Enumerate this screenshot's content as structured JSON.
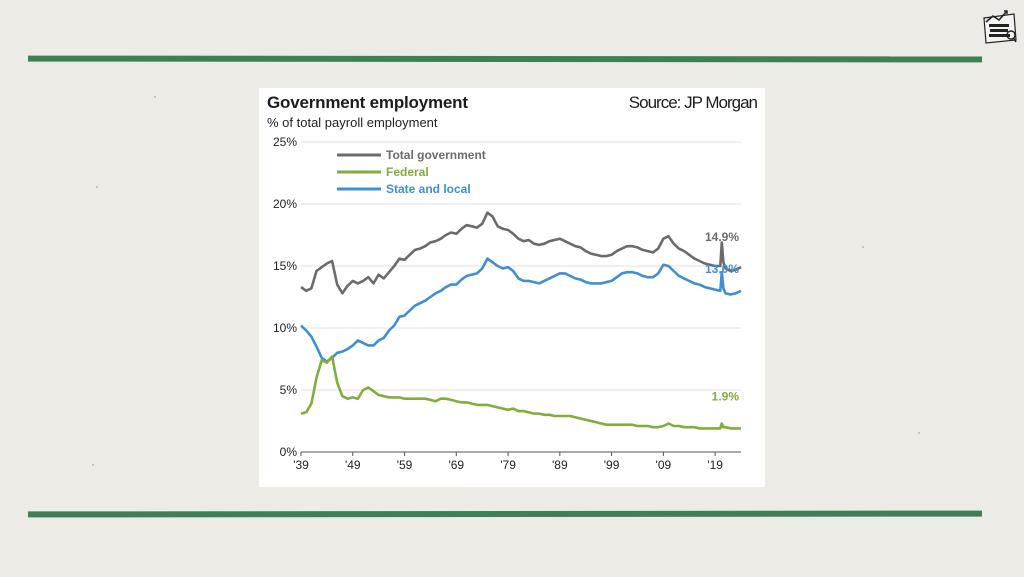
{
  "source": "Source: JP Morgan",
  "colors": {
    "rule": "#3f7f56",
    "background": "#ecebe6",
    "total": "#6b6b6b",
    "federal": "#82ad3c",
    "state": "#3f8fd2"
  },
  "chart_data": {
    "type": "line",
    "title": "Government employment",
    "subtitle": "% of total payroll employment",
    "xlabel": "",
    "ylabel": "",
    "xlim": [
      1939,
      2024
    ],
    "ylim": [
      0,
      25
    ],
    "x_ticks": [
      1939,
      1949,
      1959,
      1969,
      1979,
      1989,
      1999,
      2009,
      2019
    ],
    "x_tick_labels": [
      "'39",
      "'49",
      "'59",
      "'69",
      "'79",
      "'89",
      "'99",
      "'09",
      "'19"
    ],
    "y_ticks": [
      0,
      5,
      10,
      15,
      20,
      25
    ],
    "y_tick_labels": [
      "0%",
      "5%",
      "10%",
      "15%",
      "20%",
      "25%"
    ],
    "grid": "horizontal",
    "legend_position": "top-left",
    "series": [
      {
        "name": "Total government",
        "color": "#6b6b6b",
        "end_label": "14.9%",
        "x": [
          1939,
          1940,
          1941,
          1942,
          1943,
          1944,
          1945,
          1946,
          1947,
          1948,
          1949,
          1950,
          1951,
          1952,
          1953,
          1954,
          1955,
          1956,
          1957,
          1958,
          1959,
          1960,
          1961,
          1962,
          1963,
          1964,
          1965,
          1966,
          1967,
          1968,
          1969,
          1970,
          1971,
          1972,
          1973,
          1974,
          1975,
          1976,
          1977,
          1978,
          1979,
          1980,
          1981,
          1982,
          1983,
          1984,
          1985,
          1986,
          1987,
          1988,
          1989,
          1990,
          1991,
          1992,
          1993,
          1994,
          1995,
          1996,
          1997,
          1998,
          1999,
          2000,
          2001,
          2002,
          2003,
          2004,
          2005,
          2006,
          2007,
          2008,
          2009,
          2010,
          2011,
          2012,
          2013,
          2014,
          2015,
          2016,
          2017,
          2018,
          2019,
          2020,
          2020.3,
          2020.6,
          2021,
          2022,
          2023,
          2024
        ],
        "values": [
          13.3,
          13.0,
          13.2,
          14.6,
          14.9,
          15.2,
          15.4,
          13.5,
          12.8,
          13.4,
          13.8,
          13.6,
          13.8,
          14.1,
          13.6,
          14.3,
          14.0,
          14.5,
          15.0,
          15.6,
          15.5,
          15.9,
          16.3,
          16.4,
          16.6,
          16.9,
          17.0,
          17.2,
          17.5,
          17.7,
          17.6,
          18.0,
          18.3,
          18.2,
          18.1,
          18.4,
          19.3,
          19.0,
          18.2,
          18.0,
          17.9,
          17.6,
          17.2,
          17.0,
          17.1,
          16.8,
          16.7,
          16.8,
          17.0,
          17.1,
          17.2,
          17.0,
          16.8,
          16.6,
          16.5,
          16.2,
          16.0,
          15.9,
          15.8,
          15.8,
          15.9,
          16.2,
          16.4,
          16.6,
          16.6,
          16.5,
          16.3,
          16.2,
          16.1,
          16.4,
          17.2,
          17.4,
          16.8,
          16.4,
          16.2,
          15.9,
          15.6,
          15.4,
          15.2,
          15.1,
          15.0,
          15.0,
          16.9,
          15.3,
          14.8,
          14.6,
          14.7,
          14.9
        ]
      },
      {
        "name": "Federal",
        "color": "#82ad3c",
        "end_label": "1.9%",
        "x": [
          1939,
          1940,
          1941,
          1942,
          1943,
          1944,
          1945,
          1946,
          1947,
          1948,
          1949,
          1950,
          1951,
          1952,
          1953,
          1954,
          1955,
          1956,
          1957,
          1958,
          1959,
          1960,
          1961,
          1962,
          1963,
          1964,
          1965,
          1966,
          1967,
          1968,
          1969,
          1970,
          1971,
          1972,
          1973,
          1974,
          1975,
          1976,
          1977,
          1978,
          1979,
          1980,
          1981,
          1982,
          1983,
          1984,
          1985,
          1986,
          1987,
          1988,
          1989,
          1990,
          1991,
          1992,
          1993,
          1994,
          1995,
          1996,
          1997,
          1998,
          1999,
          2000,
          2001,
          2002,
          2003,
          2004,
          2005,
          2006,
          2007,
          2008,
          2009,
          2010,
          2011,
          2012,
          2013,
          2014,
          2015,
          2016,
          2017,
          2018,
          2019,
          2020,
          2020.3,
          2020.6,
          2021,
          2022,
          2023,
          2024
        ],
        "values": [
          3.1,
          3.2,
          3.9,
          6.0,
          7.4,
          7.2,
          7.7,
          5.6,
          4.5,
          4.3,
          4.4,
          4.3,
          5.0,
          5.2,
          4.9,
          4.6,
          4.5,
          4.4,
          4.4,
          4.4,
          4.3,
          4.3,
          4.3,
          4.3,
          4.3,
          4.2,
          4.1,
          4.3,
          4.3,
          4.2,
          4.1,
          4.0,
          4.0,
          3.9,
          3.8,
          3.8,
          3.8,
          3.7,
          3.6,
          3.5,
          3.4,
          3.5,
          3.3,
          3.3,
          3.2,
          3.1,
          3.1,
          3.0,
          3.0,
          2.9,
          2.9,
          2.9,
          2.9,
          2.8,
          2.7,
          2.6,
          2.5,
          2.4,
          2.3,
          2.2,
          2.2,
          2.2,
          2.2,
          2.2,
          2.2,
          2.1,
          2.1,
          2.1,
          2.0,
          2.0,
          2.1,
          2.3,
          2.1,
          2.1,
          2.0,
          2.0,
          2.0,
          1.9,
          1.9,
          1.9,
          1.9,
          1.9,
          2.3,
          2.0,
          2.0,
          1.9,
          1.9,
          1.9
        ]
      },
      {
        "name": "State and local",
        "color": "#3f8fd2",
        "end_label": "13.0%",
        "x": [
          1939,
          1940,
          1941,
          1942,
          1943,
          1944,
          1945,
          1946,
          1947,
          1948,
          1949,
          1950,
          1951,
          1952,
          1953,
          1954,
          1955,
          1956,
          1957,
          1958,
          1959,
          1960,
          1961,
          1962,
          1963,
          1964,
          1965,
          1966,
          1967,
          1968,
          1969,
          1970,
          1971,
          1972,
          1973,
          1974,
          1975,
          1976,
          1977,
          1978,
          1979,
          1980,
          1981,
          1982,
          1983,
          1984,
          1985,
          1986,
          1987,
          1988,
          1989,
          1990,
          1991,
          1992,
          1993,
          1994,
          1995,
          1996,
          1997,
          1998,
          1999,
          2000,
          2001,
          2002,
          2003,
          2004,
          2005,
          2006,
          2007,
          2008,
          2009,
          2010,
          2011,
          2012,
          2013,
          2014,
          2015,
          2016,
          2017,
          2018,
          2019,
          2020,
          2020.3,
          2020.6,
          2021,
          2022,
          2023,
          2024
        ],
        "values": [
          10.2,
          9.8,
          9.3,
          8.5,
          7.6,
          7.3,
          7.6,
          8.0,
          8.1,
          8.3,
          8.6,
          9.0,
          8.8,
          8.6,
          8.6,
          9.0,
          9.2,
          9.8,
          10.2,
          10.9,
          11.0,
          11.4,
          11.8,
          12.0,
          12.2,
          12.5,
          12.8,
          13.0,
          13.3,
          13.5,
          13.5,
          13.9,
          14.2,
          14.3,
          14.4,
          14.8,
          15.6,
          15.3,
          15.0,
          14.8,
          14.9,
          14.6,
          14.0,
          13.8,
          13.8,
          13.7,
          13.6,
          13.8,
          14.0,
          14.2,
          14.4,
          14.4,
          14.2,
          14.0,
          13.9,
          13.7,
          13.6,
          13.6,
          13.6,
          13.7,
          13.8,
          14.1,
          14.4,
          14.5,
          14.5,
          14.4,
          14.2,
          14.1,
          14.1,
          14.4,
          15.1,
          15.0,
          14.6,
          14.2,
          14.0,
          13.8,
          13.6,
          13.5,
          13.3,
          13.2,
          13.1,
          13.0,
          14.5,
          13.2,
          12.8,
          12.7,
          12.8,
          13.0
        ]
      }
    ]
  }
}
